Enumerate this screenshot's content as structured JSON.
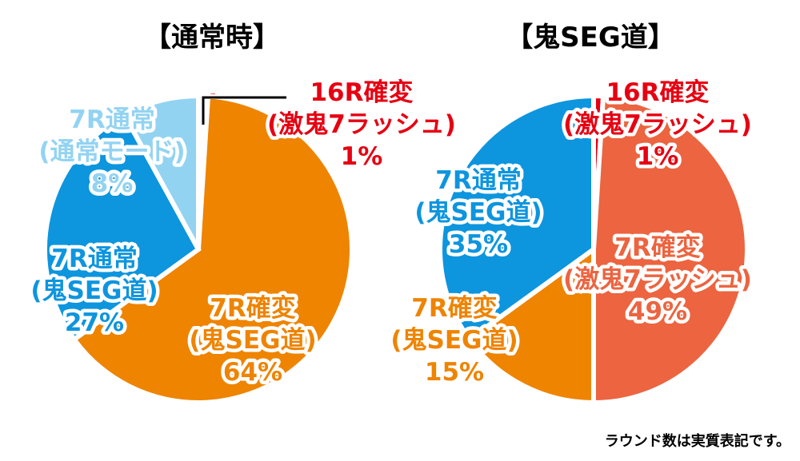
{
  "note": "ラウンド数は実質表記です。",
  "colors": {
    "orange": "#ee8400",
    "blue": "#0d95de",
    "lightblue": "#93d3f2",
    "red_slice": "#ec6440",
    "red_text": "#e60012",
    "white": "#ffffff"
  },
  "chart_data": [
    {
      "type": "pie",
      "title": "【通常時】",
      "slices": [
        {
          "label": [
            "16R確変",
            "(激鬼7ラッシュ)",
            "1%"
          ],
          "value": 1,
          "color": "#e60012",
          "text_color": "#e60012"
        },
        {
          "label": [
            "7R確変",
            "(鬼SEG道)",
            "64%"
          ],
          "value": 64,
          "color": "#ee8400",
          "text_color": "#ee8400"
        },
        {
          "label": [
            "7R通常",
            "(鬼SEG道)",
            "27%"
          ],
          "value": 27,
          "color": "#0d95de",
          "text_color": "#0d95de"
        },
        {
          "label": [
            "7R通常",
            "(通常モード)",
            "8%"
          ],
          "value": 8,
          "color": "#93d3f2",
          "text_color": "#93d3f2"
        }
      ]
    },
    {
      "type": "pie",
      "title": "【鬼SEG道】",
      "slices": [
        {
          "label": [
            "16R確変",
            "(激鬼7ラッシュ)",
            "1%"
          ],
          "value": 1,
          "color": "#e60012",
          "text_color": "#e60012"
        },
        {
          "label": [
            "7R確変",
            "(激鬼7ラッシュ)",
            "49%"
          ],
          "value": 49,
          "color": "#ec6440",
          "text_color": "#ec6440"
        },
        {
          "label": [
            "7R確変",
            "(鬼SEG道)",
            "15%"
          ],
          "value": 15,
          "color": "#ee8400",
          "text_color": "#ee8400"
        },
        {
          "label": [
            "7R通常",
            "(鬼SEG道)",
            "35%"
          ],
          "value": 35,
          "color": "#0d95de",
          "text_color": "#0d95de"
        }
      ]
    }
  ]
}
